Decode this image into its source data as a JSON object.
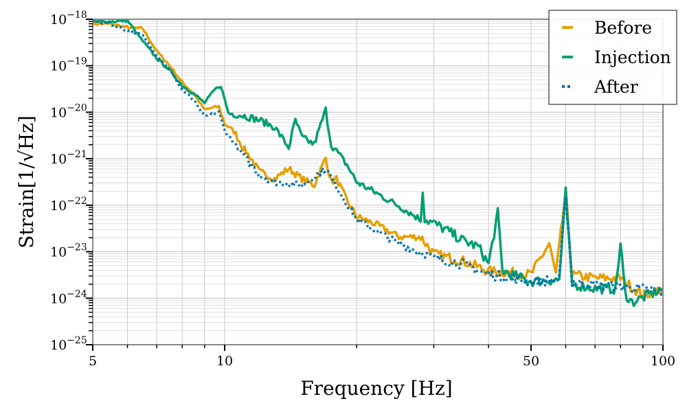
{
  "chart_data": {
    "type": "line",
    "title": "",
    "xlabel": "Frequency [Hz]",
    "ylabel": "Strain[1/√Hz]",
    "xscale": "log",
    "yscale": "log",
    "xlim": [
      5,
      100
    ],
    "ylim_exponent": [
      -25,
      -18
    ],
    "grid": true,
    "legend_position": "top-right",
    "x_ticks": [
      5,
      10,
      50,
      100
    ],
    "x_tick_labels": [
      "5",
      "10",
      "50",
      "100"
    ],
    "x_minor_ticks": [
      6,
      7,
      8,
      9,
      20,
      30,
      40,
      60,
      70,
      80,
      90
    ],
    "y_tick_exponents": [
      -18,
      -19,
      -20,
      -21,
      -22,
      -23,
      -24,
      -25
    ],
    "y_tick_labels": [
      "10",
      "10",
      "10",
      "10",
      "10",
      "10",
      "10",
      "10"
    ],
    "y_tick_sups": [
      "−18",
      "−19",
      "−20",
      "−21",
      "−22",
      "−23",
      "−24",
      "−25"
    ],
    "series_note": "values are log10 of strain",
    "series": [
      {
        "name": "Before",
        "color": "#E69F00",
        "style": "solid",
        "points": [
          [
            5,
            -18.1
          ],
          [
            5.5,
            -18.1
          ],
          [
            6,
            -18.18
          ],
          [
            6.5,
            -18.2
          ],
          [
            7,
            -18.69
          ],
          [
            7.5,
            -19.0
          ],
          [
            8,
            -19.36
          ],
          [
            8.5,
            -19.6
          ],
          [
            9,
            -19.95
          ],
          [
            9.4,
            -19.9
          ],
          [
            9.7,
            -19.88
          ],
          [
            10,
            -20.25
          ],
          [
            10.5,
            -20.4
          ],
          [
            11,
            -20.76
          ],
          [
            11.5,
            -21.0
          ],
          [
            12,
            -21.28
          ],
          [
            13,
            -21.43
          ],
          [
            14,
            -21.21
          ],
          [
            15,
            -21.43
          ],
          [
            16,
            -21.57
          ],
          [
            17,
            -20.98
          ],
          [
            17.5,
            -21.5
          ],
          [
            18,
            -21.43
          ],
          [
            19,
            -21.9
          ],
          [
            20,
            -22.24
          ],
          [
            22,
            -22.4
          ],
          [
            25,
            -22.68
          ],
          [
            28,
            -22.68
          ],
          [
            30,
            -23.05
          ],
          [
            35,
            -23.2
          ],
          [
            40,
            -23.42
          ],
          [
            45,
            -23.45
          ],
          [
            50,
            -23.49
          ],
          [
            55,
            -22.83
          ],
          [
            57,
            -23.5
          ],
          [
            60,
            -21.72
          ],
          [
            62,
            -23.5
          ],
          [
            70,
            -23.57
          ],
          [
            80,
            -23.57
          ],
          [
            90,
            -23.94
          ],
          [
            100,
            -23.79
          ]
        ]
      },
      {
        "name": "Injection",
        "color": "#009E73",
        "style": "solid",
        "points": [
          [
            5,
            -18.06
          ],
          [
            5.5,
            -18.05
          ],
          [
            6,
            -18.03
          ],
          [
            6.5,
            -18.47
          ],
          [
            7,
            -18.84
          ],
          [
            7.5,
            -19.1
          ],
          [
            8,
            -19.43
          ],
          [
            8.5,
            -19.6
          ],
          [
            9,
            -19.8
          ],
          [
            9.5,
            -19.51
          ],
          [
            9.8,
            -19.43
          ],
          [
            10.2,
            -20.02
          ],
          [
            11,
            -20.07
          ],
          [
            12,
            -20.17
          ],
          [
            13,
            -20.32
          ],
          [
            14,
            -20.76
          ],
          [
            14.5,
            -20.17
          ],
          [
            15,
            -20.54
          ],
          [
            16,
            -20.69
          ],
          [
            17,
            -19.95
          ],
          [
            17.5,
            -20.7
          ],
          [
            18,
            -20.84
          ],
          [
            19,
            -21.13
          ],
          [
            20,
            -21.5
          ],
          [
            22,
            -21.72
          ],
          [
            25,
            -22.02
          ],
          [
            28,
            -22.31
          ],
          [
            28.3,
            -21.65
          ],
          [
            28.6,
            -22.3
          ],
          [
            30,
            -22.39
          ],
          [
            32,
            -22.53
          ],
          [
            35,
            -22.76
          ],
          [
            38,
            -22.9
          ],
          [
            40,
            -23.27
          ],
          [
            42,
            -22.17
          ],
          [
            43,
            -23.4
          ],
          [
            45,
            -23.49
          ],
          [
            50,
            -23.64
          ],
          [
            58,
            -23.6
          ],
          [
            60,
            -21.72
          ],
          [
            62,
            -23.7
          ],
          [
            70,
            -23.79
          ],
          [
            78,
            -23.8
          ],
          [
            80,
            -22.83
          ],
          [
            82,
            -23.9
          ],
          [
            85,
            -24.09
          ],
          [
            100,
            -23.79
          ]
        ]
      },
      {
        "name": "After",
        "color": "#0072B2",
        "style": "dotted",
        "points": [
          [
            5,
            -18.03
          ],
          [
            5.5,
            -18.1
          ],
          [
            6,
            -18.25
          ],
          [
            6.5,
            -18.35
          ],
          [
            7,
            -18.77
          ],
          [
            7.5,
            -19.1
          ],
          [
            8,
            -19.51
          ],
          [
            8.5,
            -19.75
          ],
          [
            9,
            -20.1
          ],
          [
            9.7,
            -20.0
          ],
          [
            10,
            -20.39
          ],
          [
            11,
            -20.91
          ],
          [
            12,
            -21.35
          ],
          [
            13,
            -21.5
          ],
          [
            15,
            -21.57
          ],
          [
            17,
            -21.21
          ],
          [
            18,
            -21.6
          ],
          [
            20,
            -22.31
          ],
          [
            25,
            -22.83
          ],
          [
            30,
            -23.13
          ],
          [
            35,
            -23.27
          ],
          [
            40,
            -23.49
          ],
          [
            50,
            -23.64
          ],
          [
            58,
            -23.6
          ],
          [
            60,
            -21.72
          ],
          [
            62,
            -23.65
          ],
          [
            70,
            -23.72
          ],
          [
            80,
            -23.75
          ],
          [
            90,
            -23.8
          ],
          [
            100,
            -23.86
          ]
        ]
      }
    ]
  }
}
